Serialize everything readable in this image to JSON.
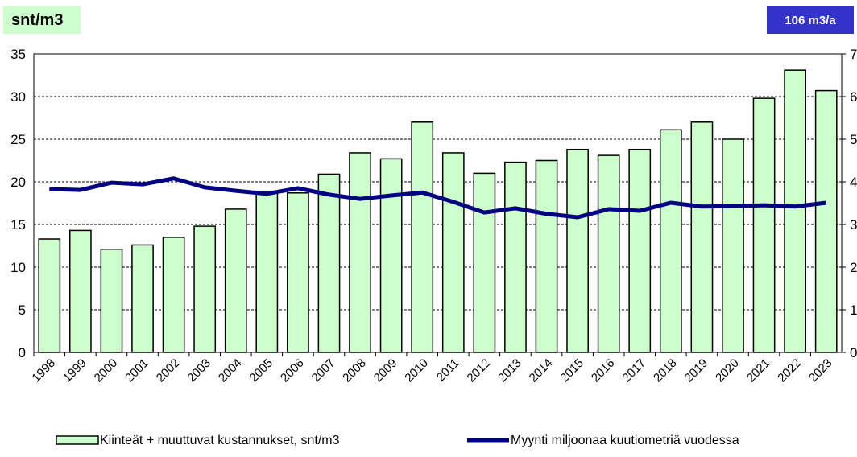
{
  "chart_data": {
    "type": "bar_line",
    "y_label": "snt/m3",
    "y2_label": "106 m3/a",
    "categories": [
      "1998",
      "1999",
      "2000",
      "2001",
      "2002",
      "2003",
      "2004",
      "2005",
      "2006",
      "2007",
      "2008",
      "2009",
      "2010",
      "2011",
      "2012",
      "2013",
      "2014",
      "2015",
      "2016",
      "2017",
      "2018",
      "2019",
      "2020",
      "2021",
      "2022",
      "2023"
    ],
    "series": [
      {
        "name": "Kiinteät + muuttuvat kustannukset, snt/m3",
        "type": "bar",
        "color": "#ccffcc",
        "values": [
          13.3,
          14.3,
          12.1,
          12.6,
          13.5,
          14.8,
          16.8,
          18.9,
          18.7,
          20.9,
          23.4,
          22.7,
          27.0,
          23.4,
          21.0,
          22.3,
          22.5,
          23.8,
          23.1,
          23.8,
          26.1,
          27.0,
          25.0,
          29.8,
          33.1,
          30.7
        ]
      },
      {
        "name": "Myynti miljoonaa kuutiometriä vuodessa",
        "type": "line",
        "color": "#000080",
        "axis": "y2",
        "values": [
          3.83,
          3.81,
          3.98,
          3.94,
          4.08,
          3.87,
          3.79,
          3.72,
          3.85,
          3.7,
          3.6,
          3.68,
          3.75,
          3.53,
          3.28,
          3.38,
          3.25,
          3.17,
          3.36,
          3.32,
          3.51,
          3.42,
          3.43,
          3.45,
          3.42,
          3.51
        ]
      }
    ],
    "ylim": [
      0,
      35
    ],
    "yticks": [
      0,
      5,
      10,
      15,
      20,
      25,
      30,
      35
    ],
    "y2lim": [
      0,
      7
    ],
    "y2ticks": [
      0,
      1,
      2,
      3,
      4,
      5,
      6,
      7
    ],
    "grid": true
  }
}
